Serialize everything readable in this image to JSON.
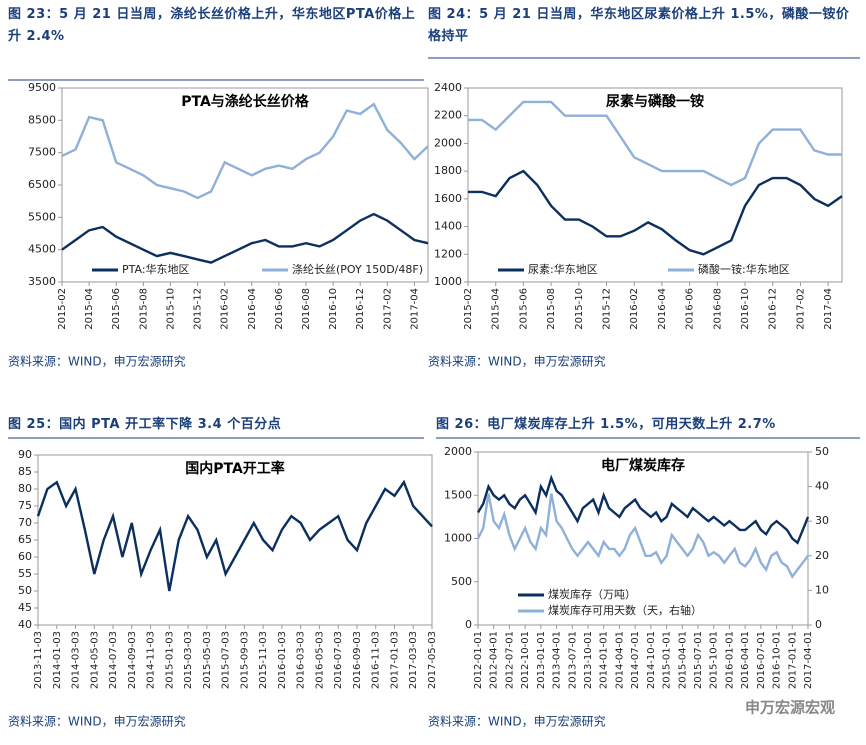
{
  "watermark": "申万宏源宏观",
  "chart_data": [
    {
      "type": "line",
      "caption": "图 23：5 月 21 日当周，涤纶长丝价格上升，华东地区PTA价格上升 2.4%",
      "title": "PTA与涤纶长丝价格",
      "source": "资料来源：WIND，申万宏源研究",
      "categories": [
        "2015-02",
        null,
        "2015-04",
        null,
        "2015-06",
        null,
        "2015-08",
        null,
        "2015-10",
        null,
        "2015-12",
        null,
        "2016-02",
        null,
        "2016-04",
        null,
        "2016-06",
        null,
        "2016-08",
        null,
        "2016-10",
        null,
        "2016-12",
        null,
        "2017-02",
        null,
        "2017-04",
        null
      ],
      "ylim": [
        3500,
        9500
      ],
      "yticks": [
        3500,
        4500,
        5500,
        6500,
        7500,
        8500,
        9500
      ],
      "series": [
        {
          "name": "PTA:华东地区",
          "color": "#0b2f5e",
          "values": [
            4500,
            4800,
            5100,
            5200,
            4900,
            4700,
            4500,
            4300,
            4400,
            4300,
            4200,
            4100,
            4300,
            4500,
            4700,
            4800,
            4600,
            4600,
            4700,
            4600,
            4800,
            5100,
            5400,
            5600,
            5400,
            5100,
            4800,
            4700
          ]
        },
        {
          "name": "涤纶长丝(POY 150D/48F)",
          "color": "#8fb0d8",
          "values": [
            7400,
            7600,
            8600,
            8500,
            7200,
            7000,
            6800,
            6500,
            6400,
            6300,
            6100,
            6300,
            7200,
            7000,
            6800,
            7000,
            7100,
            7000,
            7300,
            7500,
            8000,
            8800,
            8700,
            9000,
            8200,
            7800,
            7300,
            7700
          ]
        }
      ]
    },
    {
      "type": "line",
      "caption": "图 24：5 月 21 日当周，华东地区尿素价格上升 1.5%，磷酸一铵价格持平",
      "title": "尿素与磷酸一铵",
      "source": "资料来源：WIND，申万宏源研究",
      "categories": [
        "2015-02",
        null,
        "2015-04",
        null,
        "2015-06",
        null,
        "2015-08",
        null,
        "2015-10",
        null,
        "2015-12",
        null,
        "2016-02",
        null,
        "2016-04",
        null,
        "2016-06",
        null,
        "2016-08",
        null,
        "2016-10",
        null,
        "2016-12",
        null,
        "2017-02",
        null,
        "2017-04",
        null
      ],
      "ylim": [
        1000,
        2400
      ],
      "yticks": [
        1000,
        1200,
        1400,
        1600,
        1800,
        2000,
        2200,
        2400
      ],
      "series": [
        {
          "name": "尿素:华东地区",
          "color": "#0b2f5e",
          "values": [
            1650,
            1650,
            1620,
            1750,
            1800,
            1700,
            1550,
            1450,
            1450,
            1400,
            1330,
            1330,
            1370,
            1430,
            1380,
            1300,
            1230,
            1200,
            1250,
            1300,
            1550,
            1700,
            1750,
            1750,
            1700,
            1600,
            1550,
            1620
          ]
        },
        {
          "name": "磷酸一铵:华东地区",
          "color": "#8fb0d8",
          "values": [
            2170,
            2170,
            2100,
            2200,
            2300,
            2300,
            2300,
            2200,
            2200,
            2200,
            2200,
            2050,
            1900,
            1850,
            1800,
            1800,
            1800,
            1800,
            1750,
            1700,
            1750,
            2000,
            2100,
            2100,
            2100,
            1950,
            1920,
            1920
          ]
        }
      ]
    },
    {
      "type": "line",
      "caption": "图 25：国内 PTA 开工率下降 3.4 个百分点",
      "title": "国内PTA开工率",
      "source": "资料来源：WIND，申万宏源研究",
      "categories": [
        "2013-11-03",
        null,
        "2014-01-03",
        null,
        "2014-03-03",
        null,
        "2014-05-03",
        null,
        "2014-07-03",
        null,
        "2014-09-03",
        null,
        "2014-11-03",
        null,
        "2015-01-03",
        null,
        "2015-03-03",
        null,
        "2015-05-03",
        null,
        "2015-07-03",
        null,
        "2015-09-03",
        null,
        "2015-11-03",
        null,
        "2016-01-03",
        null,
        "2016-03-03",
        null,
        "2016-05-03",
        null,
        "2016-07-03",
        null,
        "2016-09-03",
        null,
        "2016-11-03",
        null,
        "2017-01-03",
        null,
        "2017-03-03",
        null,
        "2017-05-03"
      ],
      "ylim": [
        40,
        90
      ],
      "yticks": [
        40,
        45,
        50,
        55,
        60,
        65,
        70,
        75,
        80,
        85,
        90
      ],
      "color": "#0b2f5e",
      "values": [
        72,
        80,
        82,
        75,
        80,
        68,
        55,
        65,
        72,
        60,
        70,
        55,
        62,
        68,
        50,
        65,
        72,
        68,
        60,
        65,
        55,
        60,
        65,
        70,
        65,
        62,
        68,
        72,
        70,
        65,
        68,
        70,
        72,
        65,
        62,
        70,
        75,
        80,
        78,
        82,
        75,
        72,
        69
      ]
    },
    {
      "type": "line",
      "caption": "图 26：电厂煤炭库存上升 1.5%，可用天数上升 2.7%",
      "title": "电厂煤炭库存",
      "source": "资料来源：WIND，申万宏源研究",
      "categories": [
        "2012-01-01",
        null,
        null,
        "2012-04-01",
        null,
        null,
        "2012-07-01",
        null,
        null,
        "2012-10-01",
        null,
        null,
        "2013-01-01",
        null,
        null,
        "2013-04-01",
        null,
        null,
        "2013-07-01",
        null,
        null,
        "2013-10-01",
        null,
        null,
        "2014-01-01",
        null,
        null,
        "2014-04-01",
        null,
        null,
        "2014-07-01",
        null,
        null,
        "2014-10-01",
        null,
        null,
        "2015-01-01",
        null,
        null,
        "2015-04-01",
        null,
        null,
        "2015-07-01",
        null,
        null,
        "2015-10-01",
        null,
        null,
        "2016-01-01",
        null,
        null,
        "2016-04-01",
        null,
        null,
        "2016-07-01",
        null,
        null,
        "2016-10-01",
        null,
        null,
        "2017-01-01",
        null,
        null,
        "2017-04-01"
      ],
      "ylim": [
        0,
        2000
      ],
      "yticks": [
        0,
        500,
        1000,
        1500,
        2000
      ],
      "y2lim": [
        0,
        50
      ],
      "y2ticks": [
        0,
        10,
        20,
        30,
        40,
        50
      ],
      "series": [
        {
          "name": "煤炭库存（万吨）",
          "color": "#0b2f5e",
          "values": [
            1300,
            1400,
            1600,
            1500,
            1450,
            1500,
            1400,
            1350,
            1450,
            1500,
            1400,
            1300,
            1600,
            1500,
            1700,
            1550,
            1500,
            1400,
            1300,
            1200,
            1350,
            1400,
            1450,
            1300,
            1500,
            1350,
            1300,
            1250,
            1350,
            1400,
            1450,
            1350,
            1300,
            1250,
            1300,
            1200,
            1250,
            1400,
            1350,
            1300,
            1250,
            1350,
            1300,
            1250,
            1200,
            1250,
            1200,
            1150,
            1200,
            1150,
            1100,
            1100,
            1150,
            1200,
            1100,
            1050,
            1150,
            1200,
            1150,
            1100,
            1000,
            950,
            1100,
            1250
          ]
        },
        {
          "name": "煤炭库存可用天数（天，右轴）",
          "color": "#8fb0d8",
          "axis": "y2",
          "values": [
            25,
            28,
            38,
            30,
            28,
            32,
            26,
            22,
            25,
            28,
            24,
            22,
            28,
            26,
            38,
            30,
            28,
            25,
            22,
            20,
            22,
            24,
            22,
            20,
            24,
            22,
            22,
            20,
            22,
            26,
            28,
            24,
            20,
            20,
            21,
            18,
            20,
            26,
            24,
            22,
            20,
            22,
            26,
            24,
            20,
            21,
            20,
            18,
            20,
            22,
            18,
            17,
            19,
            22,
            18,
            16,
            20,
            21,
            18,
            17,
            14,
            16,
            18,
            20
          ]
        }
      ]
    }
  ]
}
